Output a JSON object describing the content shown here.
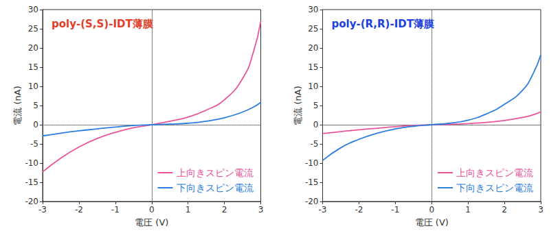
{
  "chart_data": [
    {
      "type": "line",
      "title": "poly-(S,S)-IDT薄膜",
      "x_label": "電圧 (V)",
      "y_label": "電流 (nA)",
      "x": [
        -3,
        -2.5,
        -2,
        -1.5,
        -1,
        -0.5,
        0,
        0.5,
        1,
        1.5,
        2,
        2.5,
        2.8,
        3
      ],
      "series": [
        {
          "name": "上向きスピン電流",
          "color": "#e8559b",
          "values": [
            -12.3,
            -8.7,
            -5.8,
            -3.6,
            -2.0,
            -0.8,
            0,
            0.9,
            2.0,
            3.8,
            6.5,
            12.0,
            19.0,
            27.0
          ]
        },
        {
          "name": "下向きスピン電流",
          "color": "#2b7de0",
          "values": [
            -2.9,
            -2.2,
            -1.6,
            -1.1,
            -0.6,
            -0.2,
            0,
            0.15,
            0.4,
            0.9,
            1.8,
            3.3,
            4.6,
            5.8
          ]
        }
      ],
      "xlim": [
        -3,
        3
      ],
      "xticks": [
        -3,
        -2,
        -1,
        0,
        1,
        2,
        3
      ],
      "ylim": [
        -20,
        30
      ],
      "yticks": [
        -20,
        -15,
        -10,
        -5,
        0,
        5,
        10,
        15,
        20,
        25,
        30
      ],
      "grid": false,
      "legend": "lower right"
    },
    {
      "type": "line",
      "title": "poly-(R,R)-IDT薄膜",
      "x_label": "電圧 (V)",
      "y_label": "電流 (nA)",
      "x": [
        -3,
        -2.5,
        -2,
        -1.5,
        -1,
        -0.5,
        0,
        0.5,
        1,
        1.5,
        2,
        2.5,
        2.8,
        3
      ],
      "series": [
        {
          "name": "上向きスピン電流",
          "color": "#e8559b",
          "values": [
            -2.3,
            -1.8,
            -1.3,
            -0.9,
            -0.5,
            -0.2,
            0,
            0.1,
            0.3,
            0.6,
            1.1,
            1.9,
            2.6,
            3.4
          ]
        },
        {
          "name": "下向きスピン電流",
          "color": "#2b7de0",
          "values": [
            -9.3,
            -6.0,
            -3.8,
            -2.2,
            -1.1,
            -0.4,
            0,
            0.4,
            1.2,
            2.8,
            5.3,
            9.0,
            13.5,
            18.2
          ]
        }
      ],
      "xlim": [
        -3,
        3
      ],
      "xticks": [
        -3,
        -2,
        -1,
        0,
        1,
        2,
        3
      ],
      "ylim": [
        -20,
        30
      ],
      "yticks": [
        -20,
        -15,
        -10,
        -5,
        0,
        5,
        10,
        15,
        20,
        25,
        30
      ],
      "grid": false,
      "legend": "lower right"
    }
  ]
}
